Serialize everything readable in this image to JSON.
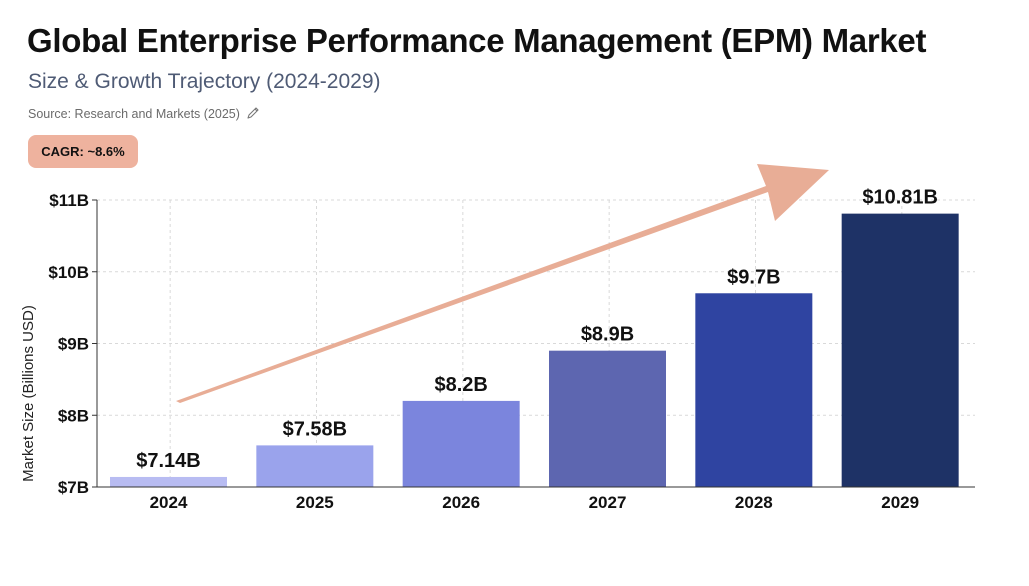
{
  "header": {
    "title": "Global Enterprise Performance Management (EPM) Market",
    "subtitle": "Size & Growth Trajectory (2024-2029)",
    "source": "Source: Research and Markets (2025)",
    "edit_icon": "pencil-icon",
    "cagr_label": "CAGR: ~8.6%"
  },
  "colors": {
    "accent": "#e8ad96",
    "badge_bg": "#eeb29e",
    "grid": "#d9d9d9",
    "bars": [
      "#b8bcf2",
      "#9aa3ec",
      "#7b85dd",
      "#5d66b0",
      "#2f44a1",
      "#1e3266"
    ]
  },
  "chart_data": {
    "type": "bar",
    "title": "Global Enterprise Performance Management (EPM) Market",
    "subtitle": "Size & Growth Trajectory (2024-2029)",
    "xlabel": "",
    "ylabel": "Market Size (Billions USD)",
    "categories": [
      "2024",
      "2025",
      "2026",
      "2027",
      "2028",
      "2029"
    ],
    "values": [
      7.14,
      7.58,
      8.2,
      8.9,
      9.7,
      10.81
    ],
    "value_labels": [
      "$7.14B",
      "$7.58B",
      "$8.2B",
      "$8.9B",
      "$9.7B",
      "$10.81B"
    ],
    "ylim": [
      7,
      11
    ],
    "yticks": [
      7,
      8,
      9,
      10,
      11
    ],
    "ytick_labels": [
      "$7B",
      "$8B",
      "$9B",
      "$10B",
      "$11B"
    ],
    "grid": true,
    "annotations": [
      "CAGR: ~8.6%"
    ]
  }
}
